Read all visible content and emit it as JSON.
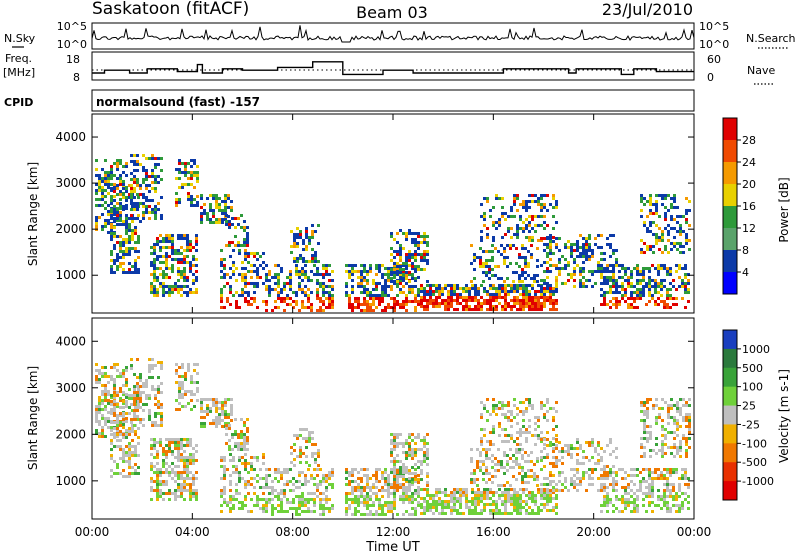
{
  "header": {
    "station": "Saskatoon (fitACF)",
    "beam": "Beam 03",
    "date": "23/Jul/2010",
    "cpid_label": "CPID",
    "cpid_value": "normalsound (fast) -157"
  },
  "panels": {
    "nsky": {
      "left_label": "N.Sky",
      "right_label": "N.Search",
      "ticks_left": [
        "10^5",
        "10^0"
      ],
      "ticks_right": [
        "10^5",
        "10^0"
      ]
    },
    "freq": {
      "left_label_1": "Freq.",
      "left_label_2": "[MHz]",
      "right_label": "Nave",
      "ticks_left": [
        "18",
        "8"
      ],
      "ticks_right": [
        "60",
        "0"
      ]
    }
  },
  "axes": {
    "ylabel": "Slant Range [km]",
    "xlabel": "Time UT",
    "yticks": [
      "4000",
      "3000",
      "2000",
      "1000"
    ],
    "xticks": [
      "00:00",
      "04:00",
      "08:00",
      "12:00",
      "16:00",
      "20:00",
      "00:00"
    ]
  },
  "colorbars": {
    "power": {
      "label": "Power [dB]",
      "ticks": [
        "28",
        "24",
        "20",
        "16",
        "12",
        "8",
        "4"
      ],
      "colors": [
        "#e00000",
        "#f04a00",
        "#f59a00",
        "#e8d000",
        "#2e9a3a",
        "#5aa36b",
        "#0c3aa8",
        "#0000ff"
      ]
    },
    "velocity": {
      "label": "Velocity [m s-1]",
      "ticks": [
        "1000",
        "500",
        "100",
        "25",
        "-25",
        "-100",
        "-500",
        "-1000"
      ],
      "colors": [
        "#1a3fbf",
        "#2b7a3d",
        "#39a339",
        "#6fd13a",
        "#bfbfbf",
        "#f0b000",
        "#f07800",
        "#e83000",
        "#e00000"
      ]
    }
  },
  "chart_data": [
    {
      "type": "line",
      "title": "Saskatoon (fitACF)",
      "ylabel": "N.Sky",
      "x_range_hours": [
        0,
        24
      ],
      "log_y": true
    },
    {
      "type": "line",
      "ylabel": "Freq. [MHz]",
      "x_range_hours": [
        0,
        24
      ],
      "ylim": [
        8,
        18
      ],
      "freq_steps": [
        [
          0,
          10.5
        ],
        [
          0.5,
          11.5
        ],
        [
          1.5,
          10.5
        ],
        [
          2.2,
          12
        ],
        [
          3.4,
          11
        ],
        [
          4.2,
          13.5
        ],
        [
          4.4,
          10.5
        ],
        [
          5.2,
          12
        ],
        [
          6,
          11.5
        ],
        [
          7.4,
          12.5
        ],
        [
          8.8,
          14.5
        ],
        [
          10,
          10
        ],
        [
          11.6,
          11.5
        ],
        [
          12.8,
          10.5
        ],
        [
          16.4,
          12
        ],
        [
          19,
          10.5
        ],
        [
          19.3,
          12
        ],
        [
          21.1,
          10
        ],
        [
          21.6,
          12
        ],
        [
          22.5,
          11
        ],
        [
          24,
          11
        ]
      ]
    },
    {
      "type": "heatmap",
      "xlabel": "Time UT",
      "ylabel": "Slant Range [km]",
      "x_range_hours": [
        0,
        24
      ],
      "ylim": [
        180,
        4500
      ],
      "colorbar_label": "Power [dB]",
      "colorbar_range": [
        0,
        32
      ]
    },
    {
      "type": "heatmap",
      "xlabel": "Time UT",
      "ylabel": "Slant Range [km]",
      "x_range_hours": [
        0,
        24
      ],
      "ylim": [
        180,
        4500
      ],
      "colorbar_label": "Velocity [m s-1]"
    }
  ]
}
